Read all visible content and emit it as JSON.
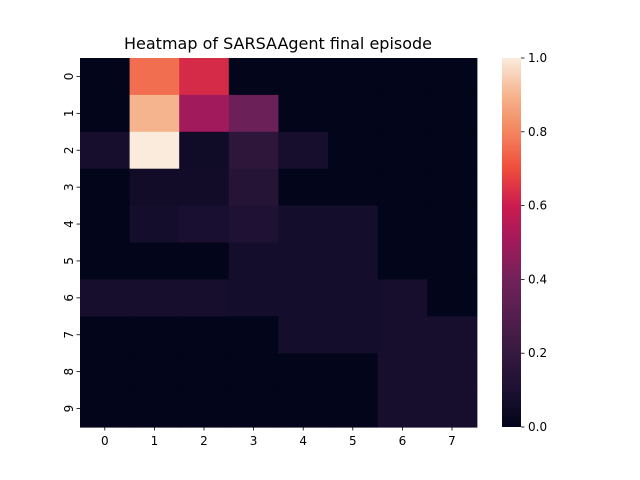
{
  "chart_data": {
    "type": "heatmap",
    "title": "Heatmap of SARSAAgent final episode",
    "xlabel": "",
    "ylabel": "",
    "x_categories": [
      "0",
      "1",
      "2",
      "3",
      "4",
      "5",
      "6",
      "7"
    ],
    "y_categories": [
      "0",
      "1",
      "2",
      "3",
      "4",
      "5",
      "6",
      "7",
      "8",
      "9"
    ],
    "values": [
      [
        0.0,
        0.76,
        0.63,
        0.0,
        0.0,
        0.0,
        0.0,
        0.0
      ],
      [
        0.0,
        0.9,
        0.5,
        0.38,
        0.0,
        0.0,
        0.0,
        0.0
      ],
      [
        0.08,
        1.0,
        0.05,
        0.17,
        0.08,
        0.0,
        0.0,
        0.0
      ],
      [
        0.0,
        0.06,
        0.06,
        0.14,
        0.0,
        0.0,
        0.0,
        0.0
      ],
      [
        0.0,
        0.07,
        0.09,
        0.11,
        0.07,
        0.07,
        0.0,
        0.0
      ],
      [
        0.0,
        0.0,
        0.0,
        0.07,
        0.07,
        0.07,
        0.0,
        0.0
      ],
      [
        0.08,
        0.08,
        0.08,
        0.07,
        0.07,
        0.07,
        0.08,
        0.0
      ],
      [
        0.0,
        0.0,
        0.0,
        0.0,
        0.07,
        0.07,
        0.08,
        0.08
      ],
      [
        0.0,
        0.0,
        0.0,
        0.0,
        0.0,
        0.0,
        0.08,
        0.08
      ],
      [
        0.0,
        0.0,
        0.0,
        0.0,
        0.0,
        0.0,
        0.08,
        0.08
      ]
    ],
    "vmin": 0.0,
    "vmax": 1.0,
    "colormap": "rocket",
    "colorbar_ticks": [
      "0.0",
      "0.2",
      "0.4",
      "0.6",
      "0.8",
      "1.0"
    ],
    "colorbar_tick_values": [
      0.0,
      0.2,
      0.4,
      0.6,
      0.8,
      1.0
    ],
    "grid": false,
    "legend": "colorbar-right"
  }
}
